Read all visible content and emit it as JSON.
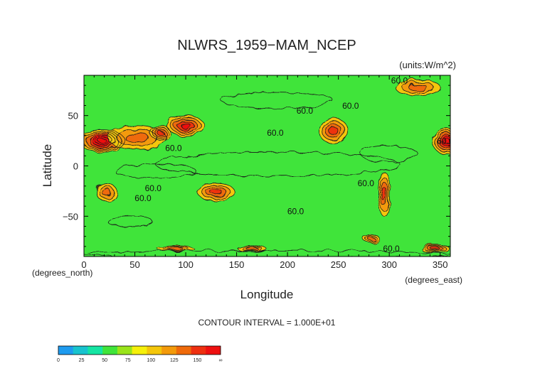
{
  "chart_data": {
    "type": "heatmap",
    "title": "NLWRS_1959−MAM_NCEP",
    "units": "(units:W/m^2)",
    "xlabel": "Longitude",
    "ylabel": "Latitude",
    "x_unit_note": "(degrees_east)",
    "y_unit_note": "(degrees_north)",
    "xlim": [
      0,
      360
    ],
    "ylim": [
      -90,
      90
    ],
    "x_ticks": [
      0,
      50,
      100,
      150,
      200,
      250,
      300,
      350
    ],
    "y_ticks": [
      -50,
      0,
      50
    ],
    "contour_interval_text": "CONTOUR INTERVAL = 1.000E+01",
    "contour_labels": [
      {
        "text": "60.0",
        "lon": 310,
        "lat": 82
      },
      {
        "text": "60.0",
        "lon": 217,
        "lat": 52
      },
      {
        "text": "60.0",
        "lon": 262,
        "lat": 57
      },
      {
        "text": "60.0",
        "lon": 188,
        "lat": 30
      },
      {
        "text": "60.0",
        "lon": 88,
        "lat": 15
      },
      {
        "text": "60.0",
        "lon": 355,
        "lat": 22
      },
      {
        "text": "60.0",
        "lon": 68,
        "lat": -25
      },
      {
        "text": "60.0",
        "lon": 58,
        "lat": -35
      },
      {
        "text": "60.0",
        "lon": 208,
        "lat": -48
      },
      {
        "text": "60.0",
        "lon": 277,
        "lat": -20
      },
      {
        "text": "60.0",
        "lon": 302,
        "lat": -85
      }
    ],
    "colorbar": {
      "levels": [
        "0",
        "25",
        "50",
        "75",
        "100",
        "125",
        "150",
        "∞"
      ],
      "colors": [
        "#1e9bef",
        "#18c3ce",
        "#15e5a3",
        "#40e43a",
        "#9ae41a",
        "#f6f00a",
        "#f4c60a",
        "#f39a0a",
        "#ef6a0a",
        "#ee3010",
        "#ee1010"
      ]
    },
    "features": [
      {
        "kind": "hot",
        "lon": 18,
        "lat": 25,
        "rx": 22,
        "ry": 11,
        "value": 150
      },
      {
        "kind": "hot",
        "lon": 52,
        "lat": 28,
        "rx": 28,
        "ry": 12,
        "value": 105
      },
      {
        "kind": "hot",
        "lon": 100,
        "lat": 40,
        "rx": 18,
        "ry": 10,
        "value": 130
      },
      {
        "kind": "hot",
        "lon": 75,
        "lat": 33,
        "rx": 10,
        "ry": 7,
        "value": 120
      },
      {
        "kind": "hot",
        "lon": 245,
        "lat": 35,
        "rx": 14,
        "ry": 13,
        "value": 120
      },
      {
        "kind": "hot",
        "lon": 357,
        "lat": 24,
        "rx": 14,
        "ry": 13,
        "value": 145
      },
      {
        "kind": "hot",
        "lon": 22,
        "lat": -26,
        "rx": 10,
        "ry": 9,
        "value": 100
      },
      {
        "kind": "hot",
        "lon": 130,
        "lat": -26,
        "rx": 18,
        "ry": 9,
        "value": 120
      },
      {
        "kind": "hot",
        "lon": 295,
        "lat": -28,
        "rx": 6,
        "ry": 22,
        "value": 115
      },
      {
        "kind": "hot",
        "lon": 328,
        "lat": 78,
        "rx": 22,
        "ry": 8,
        "value": 100
      },
      {
        "kind": "hot",
        "lon": 345,
        "lat": -82,
        "rx": 14,
        "ry": 4,
        "value": 120
      },
      {
        "kind": "hot",
        "lon": 90,
        "lat": -82,
        "rx": 18,
        "ry": 3,
        "value": 100
      },
      {
        "kind": "hot",
        "lon": 165,
        "lat": -82,
        "rx": 14,
        "ry": 3,
        "value": 100
      },
      {
        "kind": "hot",
        "lon": 282,
        "lat": -72,
        "rx": 8,
        "ry": 4,
        "value": 100
      },
      {
        "kind": "cool",
        "lon": 190,
        "lat": 2,
        "rx": 120,
        "ry": 12,
        "value": 40
      },
      {
        "kind": "cool",
        "lon": 300,
        "lat": 12,
        "rx": 28,
        "ry": 8,
        "value": 40
      },
      {
        "kind": "cool",
        "lon": 70,
        "lat": -5,
        "rx": 40,
        "ry": 7,
        "value": 40
      },
      {
        "kind": "cool",
        "lon": 190,
        "lat": 65,
        "rx": 55,
        "ry": 8,
        "value": 40
      },
      {
        "kind": "cool",
        "lon": 45,
        "lat": -55,
        "rx": 22,
        "ry": 5,
        "value": 40
      },
      {
        "kind": "cool",
        "lon": 180,
        "lat": -88,
        "rx": 180,
        "ry": 4,
        "value": 40
      }
    ]
  }
}
